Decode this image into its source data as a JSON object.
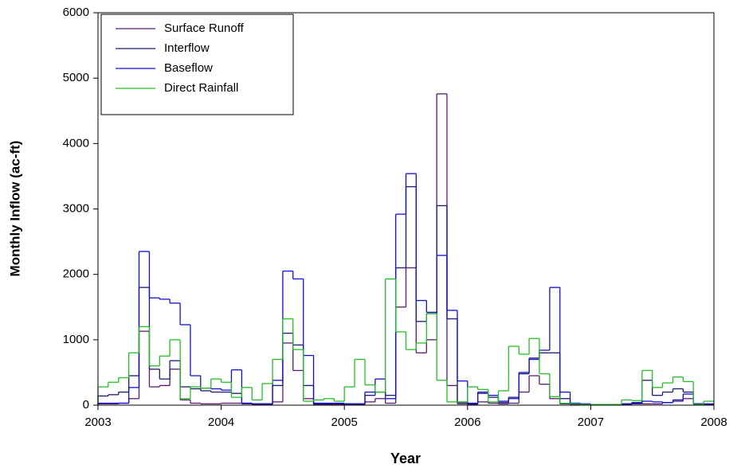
{
  "chart_data": {
    "type": "step",
    "x_label": "Year",
    "y_label": "Monthly Inflow (ac-ft)",
    "xlim": [
      2003,
      2008
    ],
    "xticks": [
      2003,
      2004,
      2005,
      2006,
      2007,
      2008
    ],
    "ylim": [
      0,
      6000
    ],
    "yticks": [
      0,
      1000,
      2000,
      3000,
      4000,
      5000,
      6000
    ],
    "legend": "upper left",
    "x": [
      2003,
      2003.083,
      2003.167,
      2003.25,
      2003.333,
      2003.417,
      2003.5,
      2003.583,
      2003.667,
      2003.75,
      2003.833,
      2003.917,
      2004,
      2004.083,
      2004.167,
      2004.25,
      2004.333,
      2004.417,
      2004.5,
      2004.583,
      2004.667,
      2004.75,
      2004.833,
      2004.917,
      2005,
      2005.083,
      2005.167,
      2005.25,
      2005.333,
      2005.417,
      2005.5,
      2005.583,
      2005.667,
      2005.75,
      2005.833,
      2005.917,
      2006,
      2006.083,
      2006.167,
      2006.25,
      2006.333,
      2006.417,
      2006.5,
      2006.583,
      2006.667,
      2006.75,
      2006.833,
      2006.917,
      2007,
      2007.083,
      2007.167,
      2007.25,
      2007.333,
      2007.417,
      2007.5,
      2007.583,
      2007.667,
      2007.75,
      2007.833,
      2007.917
    ],
    "series": [
      {
        "name": "Surface Runoff",
        "color": "#5a1a6e",
        "values": [
          20,
          20,
          30,
          100,
          1130,
          280,
          300,
          550,
          80,
          30,
          20,
          20,
          30,
          30,
          20,
          10,
          10,
          50,
          950,
          530,
          100,
          10,
          10,
          10,
          10,
          10,
          50,
          100,
          30,
          1500,
          2100,
          800,
          1000,
          4760,
          300,
          20,
          10,
          50,
          30,
          20,
          30,
          200,
          450,
          320,
          100,
          20,
          10,
          10,
          10,
          10,
          10,
          10,
          20,
          20,
          20,
          40,
          60,
          100,
          20,
          10
        ]
      },
      {
        "name": "Interflow",
        "color": "#1a1a6e",
        "values": [
          140,
          160,
          200,
          450,
          1800,
          550,
          400,
          680,
          280,
          250,
          220,
          200,
          200,
          180,
          30,
          20,
          20,
          300,
          1100,
          920,
          300,
          20,
          20,
          20,
          20,
          20,
          150,
          200,
          150,
          2100,
          3340,
          1280,
          1400,
          3050,
          1320,
          40,
          20,
          180,
          120,
          40,
          120,
          480,
          720,
          800,
          800,
          100,
          20,
          10,
          10,
          10,
          10,
          20,
          30,
          380,
          150,
          200,
          250,
          200,
          20,
          10
        ]
      },
      {
        "name": "Baseflow",
        "color": "#1010d0",
        "values": [
          30,
          30,
          30,
          270,
          2350,
          1640,
          1620,
          1560,
          1230,
          450,
          260,
          250,
          230,
          540,
          30,
          20,
          20,
          380,
          2050,
          1930,
          760,
          30,
          30,
          30,
          20,
          20,
          200,
          400,
          100,
          2920,
          3540,
          1600,
          1420,
          2290,
          1450,
          370,
          30,
          200,
          150,
          60,
          100,
          500,
          700,
          840,
          1800,
          200,
          30,
          20,
          10,
          10,
          10,
          20,
          40,
          60,
          50,
          40,
          80,
          170,
          20,
          20
        ]
      },
      {
        "name": "Direct Rainfall",
        "color": "#22c022",
        "values": [
          280,
          350,
          420,
          800,
          1200,
          600,
          750,
          1000,
          100,
          280,
          260,
          400,
          350,
          120,
          270,
          80,
          330,
          700,
          1320,
          850,
          60,
          80,
          100,
          60,
          280,
          700,
          310,
          200,
          1930,
          1120,
          850,
          950,
          1400,
          380,
          50,
          50,
          280,
          240,
          50,
          220,
          900,
          780,
          1020,
          480,
          130,
          30,
          20,
          10,
          10,
          10,
          10,
          80,
          70,
          530,
          270,
          340,
          430,
          360,
          10,
          60
        ]
      }
    ]
  }
}
